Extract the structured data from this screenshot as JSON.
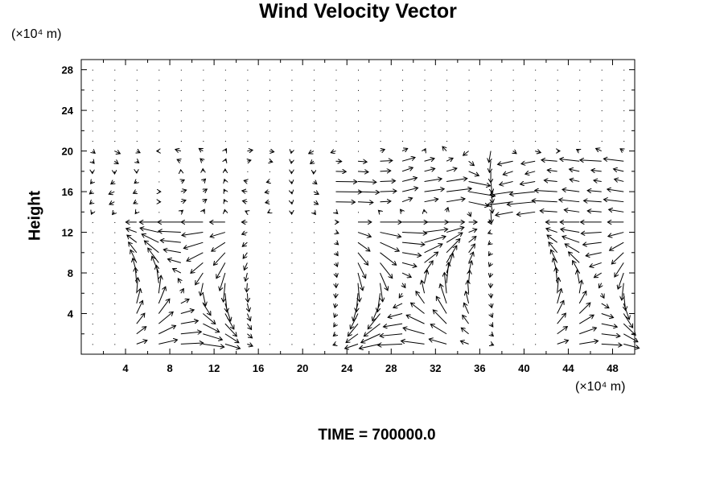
{
  "chart_data": {
    "type": "vector",
    "title": "Wind Velocity Vector",
    "ylabel": "Height",
    "yunit": "(×10⁴ m)",
    "xunit": "(×10⁴ m)",
    "xlim": [
      0,
      50
    ],
    "ylim": [
      0,
      29
    ],
    "xticks": [
      4,
      8,
      12,
      16,
      20,
      24,
      28,
      32,
      36,
      40,
      44,
      48
    ],
    "yticks": [
      4,
      8,
      12,
      16,
      20,
      24,
      28
    ],
    "grid": {
      "dx": 2,
      "dy": 1
    },
    "upper_flow_top": 20,
    "lower_flow_top": 13,
    "cells": [
      {
        "xc": 9.5,
        "halfwidth": 6.5,
        "amp": 2.2
      },
      {
        "xc": 29.5,
        "halfwidth": 7.0,
        "amp": 2.4
      },
      {
        "xc": 46.5,
        "halfwidth": 5.5,
        "amp": 2.0
      }
    ],
    "upper_jets": [
      {
        "from": 22,
        "to": 35,
        "y_range": [
          15,
          19
        ],
        "direction": "east",
        "speed": 2.2
      },
      {
        "from": 38,
        "to": 50,
        "y_range": [
          14,
          19
        ],
        "direction": "west",
        "speed": 2.4
      }
    ]
  },
  "footer": "TIME = 700000.0"
}
